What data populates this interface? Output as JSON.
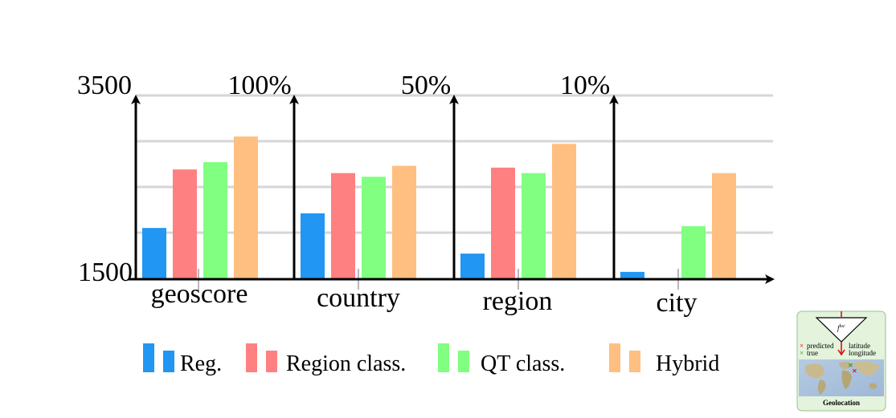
{
  "chart_data": {
    "type": "bar",
    "categories": [
      "geoscore",
      "country",
      "region",
      "city"
    ],
    "axis_top_labels": [
      "3500",
      "100%",
      "50%",
      "10%"
    ],
    "axis_bottom_label": "1500",
    "series": [
      {
        "name": "Reg.",
        "color": "#2196f3",
        "values": [
          0.28,
          0.36,
          0.14,
          0.04
        ]
      },
      {
        "name": "Region class.",
        "color": "#ff8080",
        "values": [
          0.6,
          0.58,
          0.61,
          null
        ]
      },
      {
        "name": "QT class.",
        "color": "#80ff80",
        "values": [
          0.64,
          0.56,
          0.58,
          0.29
        ]
      },
      {
        "name": "Hybrid",
        "color": "#ffbf80",
        "values": [
          0.78,
          0.62,
          0.74,
          0.58
        ]
      }
    ],
    "ylim": [
      0,
      1
    ],
    "grid": true,
    "legend_position": "bottom"
  },
  "inset": {
    "floc_label": "f",
    "floc_sup": "loc",
    "predicted_label": "predicted",
    "true_label": "true",
    "latitude_label": "latitude",
    "longitude_label": "longitude",
    "caption": "Geolocation"
  }
}
